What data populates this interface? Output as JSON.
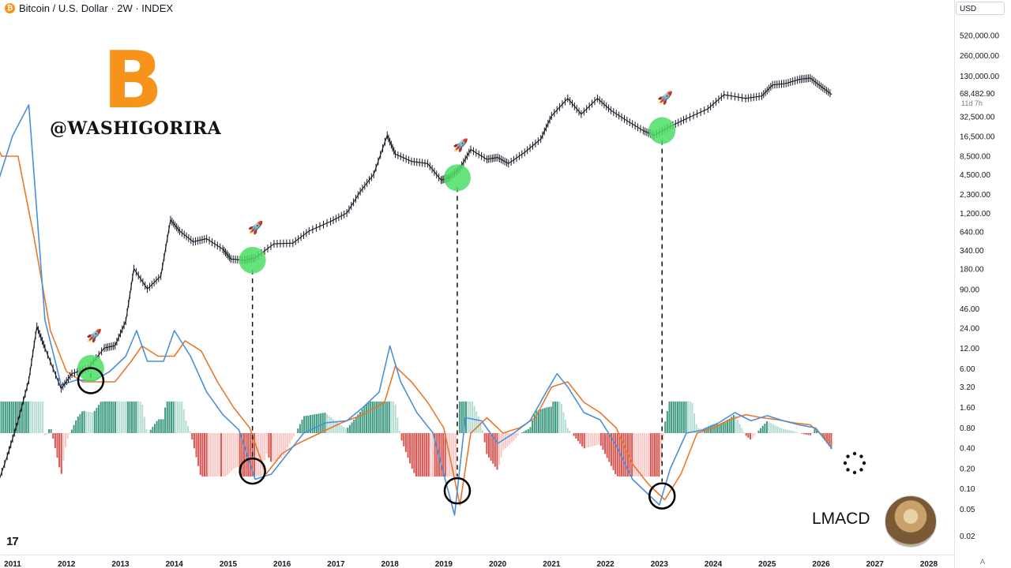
{
  "header": {
    "coin_symbol": "₿",
    "title": "Bitcoin / U.S. Dollar · 2W · INDEX"
  },
  "currency_selector": "USD",
  "watermark": {
    "logo_symbol": "B",
    "handle": "@WASHIGORIRA"
  },
  "indicator_label": "LMACD",
  "footer": {
    "tv_logo": "17",
    "corner_label": "A"
  },
  "colors": {
    "price": "#131722",
    "macd_line": "#4a90d9",
    "signal_line": "#e8782b",
    "hist_pos_strong": "#3e9a82",
    "hist_pos_weak": "#b5ddd3",
    "hist_neg_strong": "#d9534f",
    "hist_neg_weak": "#f6c9c7",
    "highlight": "#4cde64",
    "bitcoin": "#f7931a"
  },
  "chart_data": {
    "type": "line",
    "scale": "log",
    "title": "Bitcoin / U.S. Dollar · 2W · INDEX",
    "price_axis_ticks": [
      "520,000.00",
      "260,000.00",
      "130,000.00",
      "32,500.00",
      "16,500.00",
      "8,500.00",
      "4,500.00",
      "2,300.00",
      "1,200.00",
      "640.00",
      "340.00",
      "180.00",
      "90.00",
      "46.00",
      "24.00",
      "12.00",
      "6.00",
      "3.20",
      "1.60",
      "0.80",
      "0.40",
      "0.20",
      "0.10",
      "0.05",
      "0.02"
    ],
    "time_axis_ticks": [
      "2011",
      "2012",
      "2013",
      "2014",
      "2015",
      "2016",
      "2017",
      "2018",
      "2019",
      "2020",
      "2021",
      "2022",
      "2023",
      "2024",
      "2025",
      "2026",
      "2027",
      "2028"
    ],
    "last_price": "68,482.90",
    "countdown": "11d 7h",
    "price_series": {
      "x": [
        2010.6,
        2010.9,
        2011.1,
        2011.3,
        2011.45,
        2011.6,
        2011.9,
        2012.1,
        2012.4,
        2012.7,
        2012.9,
        2013.1,
        2013.25,
        2013.5,
        2013.75,
        2013.93,
        2014.1,
        2014.35,
        2014.6,
        2014.9,
        2015.05,
        2015.3,
        2015.5,
        2015.85,
        2016.2,
        2016.5,
        2016.9,
        2017.2,
        2017.45,
        2017.7,
        2017.95,
        2018.1,
        2018.4,
        2018.7,
        2018.95,
        2019.1,
        2019.3,
        2019.5,
        2019.8,
        2020.0,
        2020.2,
        2020.5,
        2020.8,
        2021.0,
        2021.3,
        2021.55,
        2021.85,
        2022.1,
        2022.4,
        2022.7,
        2022.9,
        2023.2,
        2023.5,
        2023.9,
        2024.2,
        2024.6,
        2024.9,
        2025.1,
        2025.35,
        2025.6,
        2025.8,
        2026.0,
        2026.2
      ],
      "y": [
        0.06,
        0.3,
        1.0,
        4.0,
        25,
        12,
        3.0,
        5.0,
        6.0,
        12,
        13,
        30,
        180,
        90,
        140,
        950,
        650,
        450,
        500,
        350,
        250,
        240,
        260,
        420,
        430,
        650,
        900,
        1200,
        2500,
        4500,
        17000,
        9000,
        7000,
        6500,
        3700,
        4000,
        5500,
        10500,
        7500,
        8000,
        6500,
        9500,
        15000,
        33000,
        60000,
        35000,
        60000,
        40000,
        28000,
        20000,
        17000,
        23000,
        30000,
        42000,
        68000,
        60000,
        65000,
        95000,
        100000,
        115000,
        120000,
        90000,
        68482.9
      ]
    },
    "macd_series": {
      "name": "",
      "x": [
        2010.5,
        2010.7,
        2011.0,
        2011.3,
        2011.6,
        2011.9,
        2012.2,
        2012.5,
        2012.8,
        2013.1,
        2013.3,
        2013.5,
        2013.8,
        2014.0,
        2014.3,
        2014.6,
        2014.9,
        2015.2,
        2015.5,
        2015.8,
        2016.1,
        2016.4,
        2016.8,
        2017.2,
        2017.5,
        2017.8,
        2018.0,
        2018.2,
        2018.5,
        2018.8,
        2019.0,
        2019.2,
        2019.4,
        2019.7,
        2020.0,
        2020.3,
        2020.6,
        2020.9,
        2021.1,
        2021.3,
        2021.6,
        2021.9,
        2022.2,
        2022.5,
        2022.8,
        2023.0,
        2023.2,
        2023.5,
        2023.8,
        2024.1,
        2024.4,
        2024.7,
        2025.0,
        2025.3,
        2025.6,
        2025.9,
        2026.2
      ],
      "y": [
        0.32,
        0.24,
        0.29,
        0.32,
        0.11,
        0.047,
        0.052,
        0.051,
        0.06,
        0.075,
        0.1,
        0.07,
        0.07,
        0.1,
        0.075,
        0.04,
        0.018,
        0.003,
        -0.045,
        -0.04,
        -0.02,
        0.0,
        0.01,
        0.012,
        0.025,
        0.04,
        0.085,
        0.05,
        0.02,
        0.0,
        -0.04,
        -0.08,
        0.015,
        0.012,
        -0.01,
        0.0,
        0.012,
        0.04,
        0.058,
        0.045,
        0.02,
        0.013,
        -0.012,
        -0.045,
        -0.06,
        -0.07,
        -0.035,
        0.0,
        0.003,
        0.01,
        0.02,
        0.012,
        0.017,
        0.012,
        0.008,
        0.005,
        -0.015
      ]
    },
    "signal_series": {
      "name": "",
      "x": [
        2010.5,
        2010.8,
        2011.1,
        2011.4,
        2011.7,
        2012.0,
        2012.3,
        2012.6,
        2012.9,
        2013.2,
        2013.4,
        2013.7,
        2014.0,
        2014.2,
        2014.5,
        2014.8,
        2015.1,
        2015.4,
        2015.7,
        2016.0,
        2016.3,
        2016.7,
        2017.1,
        2017.5,
        2017.9,
        2018.1,
        2018.4,
        2018.7,
        2019.0,
        2019.3,
        2019.5,
        2019.8,
        2020.1,
        2020.4,
        2020.7,
        2021.0,
        2021.3,
        2021.6,
        2021.9,
        2022.2,
        2022.5,
        2022.8,
        2023.1,
        2023.4,
        2023.7,
        2024.0,
        2024.3,
        2024.6,
        2024.9,
        2025.2,
        2025.5,
        2025.8,
        2026.2
      ],
      "y": [
        0.3,
        0.27,
        0.27,
        0.19,
        0.1,
        0.06,
        0.05,
        0.05,
        0.05,
        0.07,
        0.085,
        0.075,
        0.075,
        0.09,
        0.08,
        0.05,
        0.025,
        0.005,
        -0.04,
        -0.02,
        -0.01,
        0.0,
        0.01,
        0.018,
        0.03,
        0.065,
        0.05,
        0.03,
        0.005,
        -0.07,
        0.0,
        0.015,
        0.0,
        0.005,
        0.015,
        0.045,
        0.05,
        0.03,
        0.02,
        0.005,
        -0.03,
        -0.05,
        -0.065,
        -0.04,
        0.0,
        0.005,
        0.013,
        0.018,
        0.015,
        0.013,
        0.01,
        0.008,
        -0.01
      ]
    },
    "highlighted_lows": [
      {
        "x": 2012.45,
        "y": 6.0
      },
      {
        "x": 2015.45,
        "y": 240
      },
      {
        "x": 2019.25,
        "y": 4000
      },
      {
        "x": 2023.05,
        "y": 20000
      }
    ],
    "macd_crossovers": [
      {
        "x": 2012.45
      },
      {
        "x": 2015.45
      },
      {
        "x": 2019.25
      },
      {
        "x": 2023.05
      }
    ],
    "indicator": "LMACD",
    "grid": false,
    "legend": "none"
  }
}
